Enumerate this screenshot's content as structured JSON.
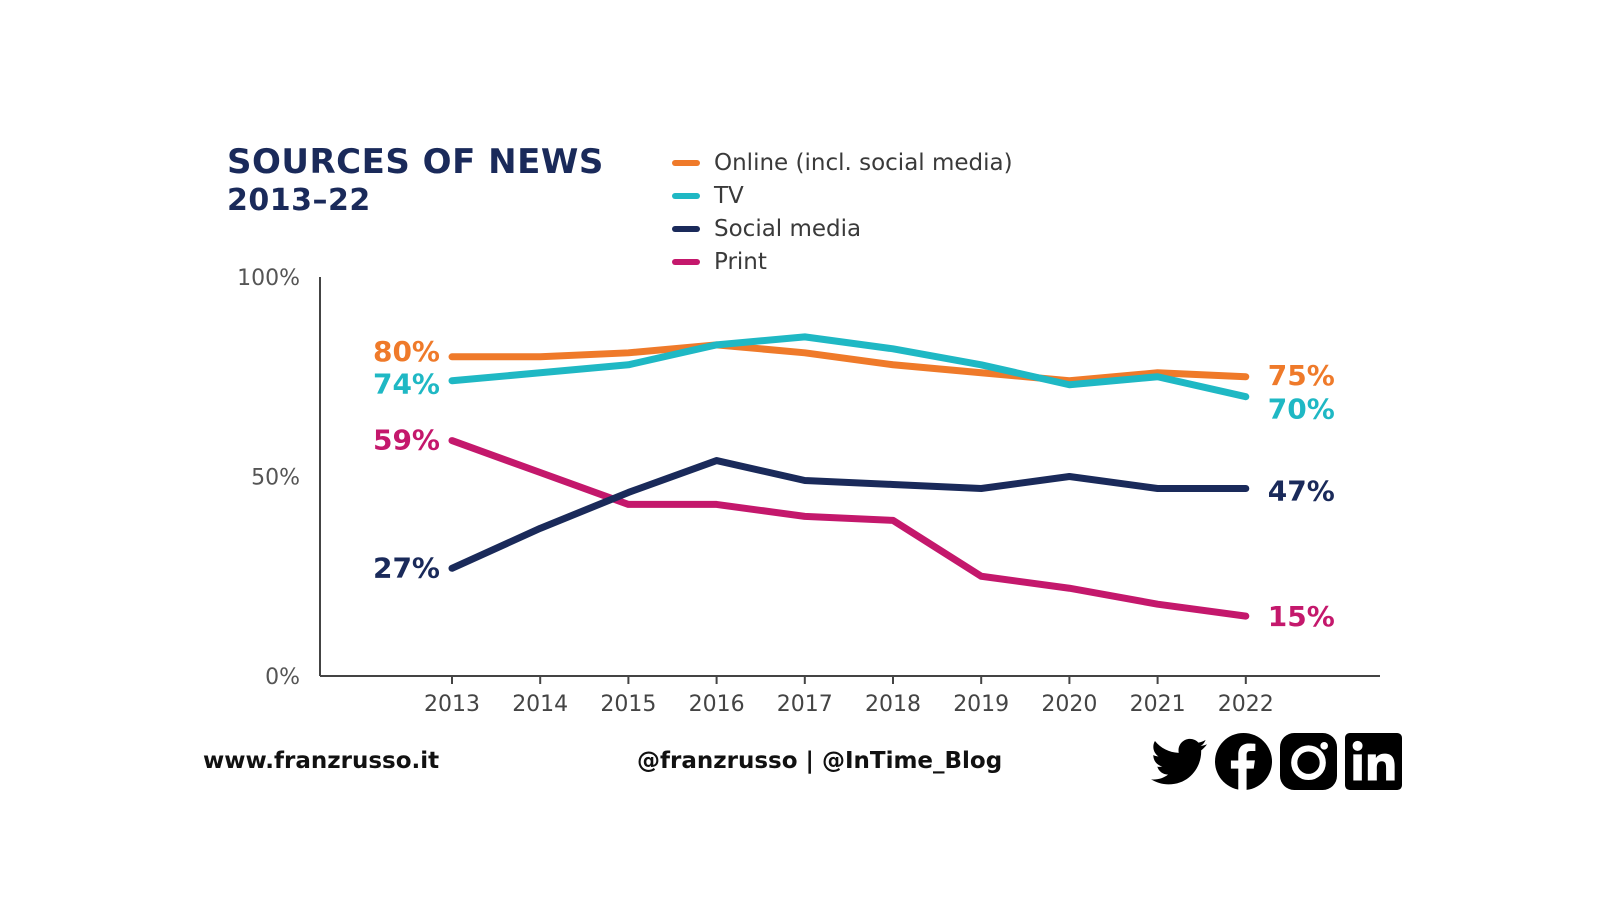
{
  "chart_data": {
    "type": "line",
    "title": "SOURCES OF NEWS",
    "subtitle": "2013–22",
    "x": [
      "2013",
      "2014",
      "2015",
      "2016",
      "2017",
      "2018",
      "2019",
      "2020",
      "2021",
      "2022"
    ],
    "ylim": [
      0,
      100
    ],
    "yticks": [
      "0%",
      "50%",
      "100%"
    ],
    "ytick_values": [
      0,
      50,
      100
    ],
    "series": [
      {
        "name": "Online (incl. social media)",
        "color": "#ef7a2a",
        "values": [
          80,
          80,
          81,
          83,
          81,
          78,
          76,
          74,
          76,
          75
        ],
        "start_label": "80%",
        "end_label": "75%"
      },
      {
        "name": "TV",
        "color": "#1fb8c4",
        "values": [
          74,
          76,
          78,
          83,
          85,
          82,
          78,
          73,
          75,
          70
        ],
        "start_label": "74%",
        "end_label": "70%"
      },
      {
        "name": "Social media",
        "color": "#1a2a5a",
        "values": [
          27,
          37,
          46,
          54,
          49,
          48,
          47,
          50,
          47,
          47
        ],
        "start_label": "27%",
        "end_label": "47%"
      },
      {
        "name": "Print",
        "color": "#c4186c",
        "values": [
          59,
          51,
          43,
          43,
          40,
          39,
          25,
          22,
          18,
          15
        ],
        "start_label": "59%",
        "end_label": "15%"
      }
    ]
  },
  "footer": {
    "website": "www.franzrusso.it",
    "handles": "@franzrusso | @InTime_Blog"
  },
  "social_icons": [
    "twitter-icon",
    "facebook-icon",
    "instagram-icon",
    "linkedin-icon"
  ]
}
